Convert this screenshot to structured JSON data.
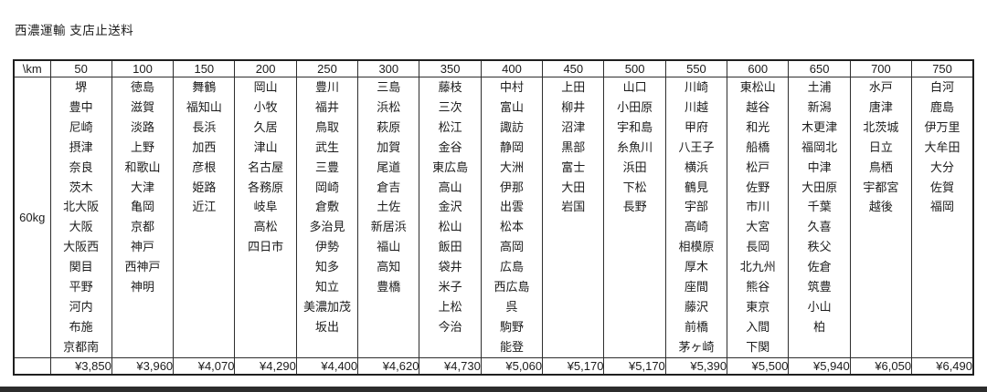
{
  "title": "西濃運輸 支店止送料",
  "table": {
    "corner_label": "\\km",
    "weight_label": "60kg",
    "columns": [
      {
        "km": "50",
        "cities": [
          "堺",
          "豊中",
          "尼崎",
          "摂津",
          "奈良",
          "茨木",
          "北大阪",
          "大阪",
          "大阪西",
          "関目",
          "平野",
          "河内",
          "布施",
          "京都南"
        ],
        "price": "¥3,850"
      },
      {
        "km": "100",
        "cities": [
          "徳島",
          "滋賀",
          "淡路",
          "上野",
          "和歌山",
          "大津",
          "亀岡",
          "京都",
          "神戸",
          "西神戸",
          "神明"
        ],
        "price": "¥3,960"
      },
      {
        "km": "150",
        "cities": [
          "舞鶴",
          "福知山",
          "長浜",
          "加西",
          "彦根",
          "姫路",
          "近江"
        ],
        "price": "¥4,070"
      },
      {
        "km": "200",
        "cities": [
          "岡山",
          "小牧",
          "久居",
          "津山",
          "名古屋",
          "各務原",
          "岐阜",
          "高松",
          "四日市"
        ],
        "price": "¥4,290"
      },
      {
        "km": "250",
        "cities": [
          "豊川",
          "福井",
          "鳥取",
          "武生",
          "三豊",
          "岡崎",
          "倉敷",
          "多治見",
          "伊勢",
          "知多",
          "知立",
          "美濃加茂",
          "坂出"
        ],
        "price": "¥4,400"
      },
      {
        "km": "300",
        "cities": [
          "三島",
          "浜松",
          "萩原",
          "加賀",
          "尾道",
          "倉吉",
          "土佐",
          "新居浜",
          "福山",
          "高知",
          "豊橋"
        ],
        "price": "¥4,620"
      },
      {
        "km": "350",
        "cities": [
          "藤枝",
          "三次",
          "松江",
          "金谷",
          "東広島",
          "高山",
          "金沢",
          "松山",
          "飯田",
          "袋井",
          "米子",
          "上松",
          "今治"
        ],
        "price": "¥4,730"
      },
      {
        "km": "400",
        "cities": [
          "中村",
          "富山",
          "諏訪",
          "静岡",
          "大洲",
          "伊那",
          "出雲",
          "松本",
          "高岡",
          "広島",
          "西広島",
          "呉",
          "駒野",
          "能登"
        ],
        "price": "¥5,060"
      },
      {
        "km": "450",
        "cities": [
          "上田",
          "柳井",
          "沼津",
          "黒部",
          "富士",
          "大田",
          "岩国"
        ],
        "price": "¥5,170"
      },
      {
        "km": "500",
        "cities": [
          "山口",
          "小田原",
          "宇和島",
          "糸魚川",
          "浜田",
          "下松",
          "長野"
        ],
        "price": "¥5,170"
      },
      {
        "km": "550",
        "cities": [
          "川崎",
          "川越",
          "甲府",
          "八王子",
          "横浜",
          "鶴見",
          "宇部",
          "高崎",
          "相模原",
          "厚木",
          "座間",
          "藤沢",
          "前橋",
          "茅ヶ崎"
        ],
        "price": "¥5,390"
      },
      {
        "km": "600",
        "cities": [
          "東松山",
          "越谷",
          "和光",
          "船橋",
          "松戸",
          "佐野",
          "市川",
          "大宮",
          "長岡",
          "北九州",
          "熊谷",
          "東京",
          "入間",
          "下関"
        ],
        "price": "¥5,500"
      },
      {
        "km": "650",
        "cities": [
          "土浦",
          "新潟",
          "木更津",
          "福岡北",
          "中津",
          "大田原",
          "千葉",
          "久喜",
          "秩父",
          "佐倉",
          "筑豊",
          "小山",
          "柏"
        ],
        "price": "¥5,940"
      },
      {
        "km": "700",
        "cities": [
          "水戸",
          "唐津",
          "北茨城",
          "日立",
          "鳥栖",
          "宇都宮",
          "越後"
        ],
        "price": "¥6,050"
      },
      {
        "km": "750",
        "cities": [
          "白河",
          "鹿島",
          "伊万里",
          "大牟田",
          "大分",
          "佐賀",
          "福岡"
        ],
        "price": "¥6,490"
      }
    ]
  }
}
